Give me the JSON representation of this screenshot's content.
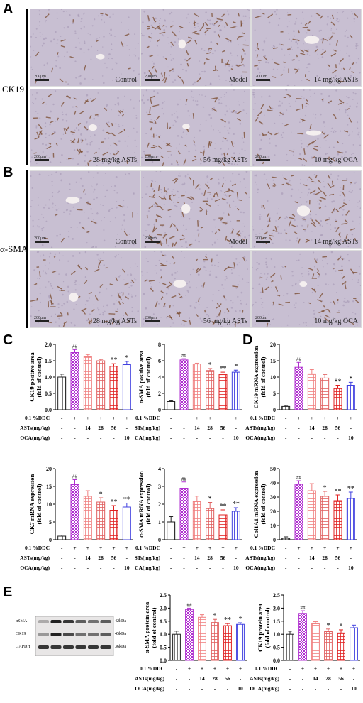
{
  "panels": {
    "A": "A",
    "B": "B",
    "C": "C",
    "D": "D",
    "E": "E"
  },
  "histology": {
    "ck19_label": "CK19",
    "asma_label": "α-SMA",
    "scale_bar": "200μm",
    "ck19_captions": [
      "Control",
      "Model",
      "14 mg/kg ASTs",
      "28 mg/kg ASTs",
      "56 mg/kg ASTs",
      "10 mg/kg OCA"
    ],
    "asma_captions": [
      "Control",
      "Model",
      "14 mg/kg ASTs",
      "28 mg/kg ASTs",
      "56 mg/kg ASTs",
      "10 mg/kg OCA"
    ],
    "tissue_colors": {
      "background": "#c8bfd2",
      "stain": "#7a4b2e",
      "vessel": "#f4efef"
    }
  },
  "treatment_table": {
    "rows": [
      {
        "label": "0.1 %DDC",
        "values": [
          "-",
          "+",
          "+",
          "+",
          "+",
          "+"
        ]
      },
      {
        "label": "ASTs(mg/kg)",
        "values": [
          "-",
          "-",
          "14",
          "28",
          "56",
          "-"
        ]
      },
      {
        "label": "OCA(mg/kg)",
        "values": [
          "-",
          "-",
          "-",
          "-",
          "-",
          "10"
        ]
      }
    ]
  },
  "group_colors": [
    "#222222",
    "#b030d0",
    "#f08080",
    "#e06060",
    "#e02020",
    "#4040e0"
  ],
  "chart_data": [
    {
      "type": "bar",
      "id": "c1",
      "ylabel": "CK19 positive area\n(fold of control)",
      "ylim": [
        0,
        2.0
      ],
      "ticks": [
        0.0,
        0.5,
        1.0,
        1.5,
        2.0
      ],
      "tick_labels": [
        "0.0",
        "0.5",
        "1.0",
        "1.5",
        "2.0"
      ],
      "values": [
        1.0,
        1.75,
        1.62,
        1.5,
        1.33,
        1.38
      ],
      "errors": [
        0.09,
        0.09,
        0.07,
        0.04,
        0.08,
        0.1
      ],
      "sig": [
        "",
        "##",
        "",
        "",
        "**",
        "*"
      ]
    },
    {
      "type": "bar",
      "id": "c2",
      "ylabel": "α-SMA positive area\n(fold of control)",
      "ylim": [
        0,
        8
      ],
      "ticks": [
        0,
        2,
        4,
        6,
        8
      ],
      "tick_labels": [
        "0",
        "2",
        "4",
        "6",
        "8"
      ],
      "values": [
        1.0,
        6.1,
        5.6,
        4.8,
        4.3,
        4.6
      ],
      "errors": [
        0.1,
        0.15,
        0.1,
        0.25,
        0.3,
        0.25
      ],
      "sig": [
        "",
        "##",
        "",
        "*",
        "**",
        "*"
      ]
    },
    {
      "type": "bar",
      "id": "d1",
      "ylabel": "CK19 mRNA expression\n(fold of control)",
      "ylim": [
        0,
        20
      ],
      "ticks": [
        0,
        5,
        10,
        15,
        20
      ],
      "tick_labels": [
        "0",
        "5",
        "10",
        "15",
        "20"
      ],
      "values": [
        1.0,
        13.0,
        11.0,
        9.7,
        6.6,
        7.5
      ],
      "errors": [
        0.3,
        1.5,
        1.3,
        1.1,
        0.9,
        0.9
      ],
      "sig": [
        "",
        "##",
        "",
        "",
        "**",
        "*"
      ]
    },
    {
      "type": "bar",
      "id": "c3",
      "ylabel": "CK7 mRNA expression\n(fold of control)",
      "ylim": [
        0,
        20
      ],
      "ticks": [
        0,
        5,
        10,
        15,
        20
      ],
      "tick_labels": [
        "0",
        "5",
        "10",
        "15",
        "20"
      ],
      "values": [
        1.0,
        15.5,
        12.2,
        10.6,
        8.3,
        9.2
      ],
      "errors": [
        0.3,
        1.4,
        1.6,
        1.2,
        1.3,
        1.1
      ],
      "sig": [
        "",
        "##",
        "",
        "*",
        "**",
        "**"
      ]
    },
    {
      "type": "bar",
      "id": "c4",
      "ylabel": "α-SMA mRNA expression\n(fold of control)",
      "ylim": [
        0,
        4
      ],
      "ticks": [
        0,
        1,
        2,
        3,
        4
      ],
      "tick_labels": [
        "0",
        "1",
        "2",
        "3",
        "4"
      ],
      "values": [
        1.0,
        2.9,
        2.15,
        1.75,
        1.4,
        1.6
      ],
      "errors": [
        0.3,
        0.35,
        0.3,
        0.35,
        0.28,
        0.2
      ],
      "sig": [
        "",
        "##",
        "",
        "*",
        "**",
        "**"
      ]
    },
    {
      "type": "bar",
      "id": "d2",
      "ylabel": "Col1A1 mRNA expression\n(fold of control)",
      "ylim": [
        0,
        50
      ],
      "ticks": [
        0,
        10,
        20,
        30,
        40,
        50
      ],
      "tick_labels": [
        "0",
        "10",
        "20",
        "30",
        "40",
        "50"
      ],
      "values": [
        1.0,
        39.0,
        34.5,
        30.5,
        27.5,
        29.0
      ],
      "errors": [
        1.0,
        2.5,
        5.0,
        3.5,
        4.0,
        4.5
      ],
      "sig": [
        "",
        "##",
        "",
        "*",
        "**",
        "**"
      ]
    },
    {
      "type": "bar",
      "id": "e1",
      "ylabel": "α-SMA protein area\n(fold of control)",
      "ylim": [
        0,
        2.5
      ],
      "ticks": [
        0.0,
        0.5,
        1.0,
        1.5,
        2.0,
        2.5
      ],
      "tick_labels": [
        "0.0",
        "0.5",
        "1.0",
        "1.5",
        "2.0",
        "2.5"
      ],
      "values": [
        1.0,
        1.95,
        1.65,
        1.45,
        1.33,
        1.38
      ],
      "errors": [
        0.12,
        0.05,
        0.1,
        0.12,
        0.08,
        0.06
      ],
      "sig": [
        "",
        "##",
        "",
        "*",
        "**",
        "*"
      ]
    },
    {
      "type": "bar",
      "id": "e2",
      "ylabel": "CK19 protein area\n(fold of control)",
      "ylim": [
        0,
        2.5
      ],
      "ticks": [
        0.0,
        0.5,
        1.0,
        1.5,
        2.0,
        2.5
      ],
      "tick_labels": [
        "0.0",
        "0.5",
        "1.0",
        "1.5",
        "2.0",
        "2.5"
      ],
      "values": [
        1.0,
        1.8,
        1.4,
        1.1,
        1.05,
        1.25
      ],
      "errors": [
        0.12,
        0.1,
        0.08,
        0.1,
        0.12,
        0.1
      ],
      "sig": [
        "",
        "##",
        "",
        "*",
        "*",
        ""
      ]
    }
  ],
  "blot": {
    "rows": [
      {
        "name": "αSMA",
        "kda": "42kDa"
      },
      {
        "name": "CK19",
        "kda": "45kDa"
      },
      {
        "name": "GAPDH",
        "kda": "36kDa"
      }
    ]
  }
}
